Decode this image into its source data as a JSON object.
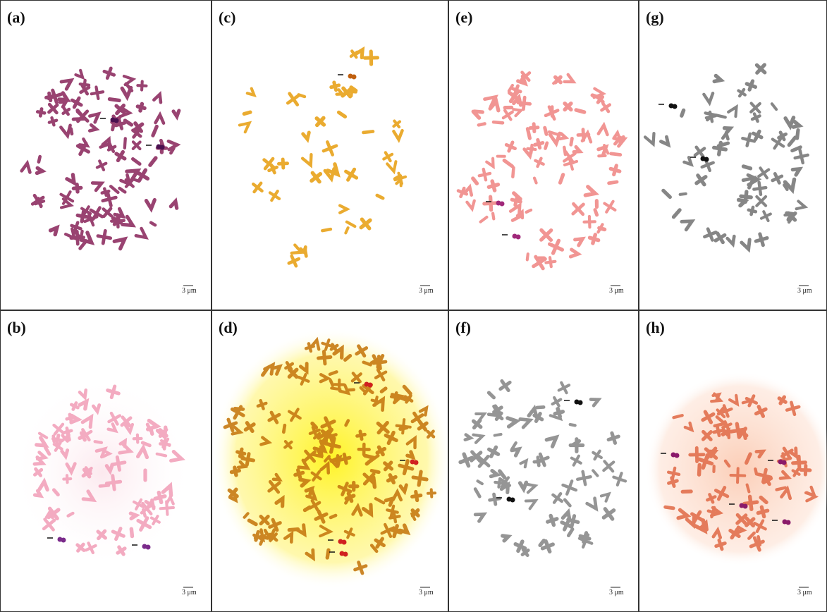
{
  "panels": [
    {
      "label": "(a)",
      "scale_bar": "3 μm"
    },
    {
      "label": "(b)",
      "scale_bar": "3 μm"
    },
    {
      "label": "(c)",
      "scale_bar": "3 μm"
    },
    {
      "label": "(d)",
      "scale_bar": "3 μm"
    },
    {
      "label": "(e)",
      "scale_bar": "3 μm"
    },
    {
      "label": "(f)",
      "scale_bar": "3 μm"
    },
    {
      "label": "(g)",
      "scale_bar": "3 μm"
    },
    {
      "label": "(h)",
      "scale_bar": "3 μm"
    }
  ]
}
